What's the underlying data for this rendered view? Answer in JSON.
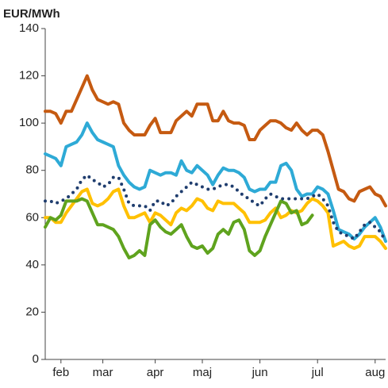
{
  "chart_data": {
    "type": "line",
    "y_label": "EUR/MWh",
    "categories": [
      null,
      null,
      null,
      "feb",
      null,
      null,
      null,
      null,
      null,
      null,
      null,
      "mar",
      null,
      null,
      null,
      null,
      null,
      null,
      null,
      null,
      null,
      "apr",
      null,
      null,
      null,
      null,
      null,
      null,
      null,
      null,
      "maj",
      null,
      null,
      null,
      null,
      null,
      null,
      null,
      null,
      null,
      null,
      "jun",
      null,
      null,
      null,
      null,
      null,
      null,
      null,
      null,
      null,
      null,
      "jul",
      null,
      null,
      null,
      null,
      null,
      null,
      null,
      null,
      null,
      null,
      "aug",
      null,
      null
    ],
    "ylim": [
      0,
      140
    ],
    "yticks": [
      0,
      20,
      40,
      60,
      80,
      100,
      120,
      140
    ],
    "grid": false,
    "series": [
      {
        "color": "#c55a11",
        "style": "solid",
        "values": [
          105,
          105,
          104,
          100,
          105,
          105,
          110,
          115,
          120,
          114,
          110,
          109,
          108,
          109,
          108,
          100,
          97,
          95,
          95,
          95,
          99,
          102,
          96,
          96,
          96,
          101,
          103,
          105,
          103,
          108,
          108,
          108,
          101,
          101,
          105,
          101,
          100,
          100,
          99,
          93,
          93,
          97,
          99,
          101,
          101,
          100,
          98,
          97,
          100,
          97,
          95,
          97,
          97,
          95,
          88,
          80,
          72,
          71,
          68,
          67,
          71,
          72,
          73,
          70,
          69,
          65
        ]
      },
      {
        "color": "#2eaad6",
        "style": "solid",
        "values": [
          87,
          86,
          85,
          82,
          90,
          91,
          92,
          95,
          100,
          96,
          93,
          92,
          91,
          90,
          82,
          78,
          75,
          73,
          72,
          73,
          80,
          79,
          78,
          79,
          79,
          78,
          84,
          80,
          79,
          82,
          80,
          78,
          74,
          78,
          81,
          80,
          80,
          79,
          77,
          72,
          71,
          72,
          72,
          75,
          75,
          82,
          83,
          80,
          72,
          69,
          70,
          70,
          73,
          72,
          70,
          63,
          55,
          54,
          53,
          51,
          53,
          56,
          58,
          60,
          56,
          50
        ]
      },
      {
        "color": "#ffc000",
        "style": "solid",
        "values": [
          60,
          60,
          58,
          58,
          62,
          65,
          68,
          71,
          72,
          66,
          65,
          66,
          68,
          71,
          72,
          65,
          60,
          60,
          61,
          62,
          58,
          62,
          61,
          59,
          57,
          62,
          64,
          63,
          65,
          68,
          67,
          64,
          63,
          67,
          66,
          66,
          66,
          64,
          62,
          58,
          58,
          58,
          59,
          62,
          64,
          60,
          61,
          63,
          62,
          63,
          66,
          68,
          67,
          65,
          62,
          48,
          49,
          50,
          48,
          47,
          48,
          52,
          52,
          52,
          50,
          47
        ]
      },
      {
        "color": "#5fa31e",
        "style": "solid",
        "values": [
          56,
          60,
          59,
          61,
          67,
          67,
          67,
          68,
          67,
          62,
          57,
          57,
          56,
          55,
          52,
          47,
          43,
          44,
          46,
          44,
          57,
          59,
          56,
          54,
          53,
          55,
          57,
          52,
          48,
          47,
          48,
          45,
          47,
          53,
          55,
          53,
          58,
          59,
          55,
          46,
          44,
          46,
          52,
          57,
          62,
          67,
          66,
          62,
          63,
          57,
          58,
          61,
          null,
          null,
          null,
          null,
          null,
          null,
          null,
          null,
          null,
          null,
          null,
          null,
          null,
          null
        ]
      },
      {
        "color": "#1f3d6e",
        "style": "dotted",
        "values": [
          67,
          67,
          66,
          67,
          68,
          70,
          72,
          76,
          78,
          76,
          75,
          73,
          74,
          77,
          77,
          72,
          66,
          65,
          65,
          65,
          63,
          67,
          67,
          65,
          66,
          69,
          71,
          73,
          75,
          74,
          73,
          72,
          72,
          73,
          74,
          74,
          73,
          71,
          69,
          68,
          66,
          65,
          68,
          70,
          69,
          68,
          68,
          68,
          68,
          68,
          68,
          69,
          70,
          68,
          65,
          58,
          54,
          53,
          52,
          51,
          54,
          57,
          58,
          56,
          54,
          50
        ]
      }
    ]
  }
}
